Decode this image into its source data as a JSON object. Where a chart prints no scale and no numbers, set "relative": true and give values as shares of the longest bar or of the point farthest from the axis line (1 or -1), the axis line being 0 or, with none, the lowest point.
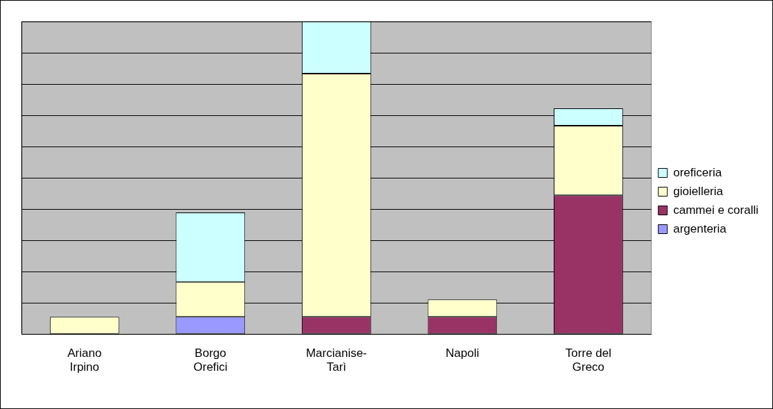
{
  "chart_data": {
    "type": "bar",
    "stacked": true,
    "relative": true,
    "grid": "y",
    "legend": "right",
    "categories": [
      "Ariano Irpino",
      "Borgo Orefici",
      "Marcianise-Tarì",
      "Napoli",
      "Torre del Greco"
    ],
    "series": [
      {
        "name": "argenteria",
        "color": "#9999ff",
        "values": [
          null,
          0.0556,
          null,
          null,
          null
        ]
      },
      {
        "name": "cammei e coralli",
        "color": "#993366",
        "values": [
          null,
          null,
          0.0556,
          0.0556,
          0.4444
        ]
      },
      {
        "name": "gioielleria",
        "color": "#ffffcc",
        "values": [
          0.0556,
          0.1111,
          0.7778,
          0.0556,
          0.2222
        ]
      },
      {
        "name": "oreficeria",
        "color": "#ccffff",
        "values": [
          null,
          0.2222,
          0.1666,
          null,
          0.0556
        ]
      }
    ]
  }
}
